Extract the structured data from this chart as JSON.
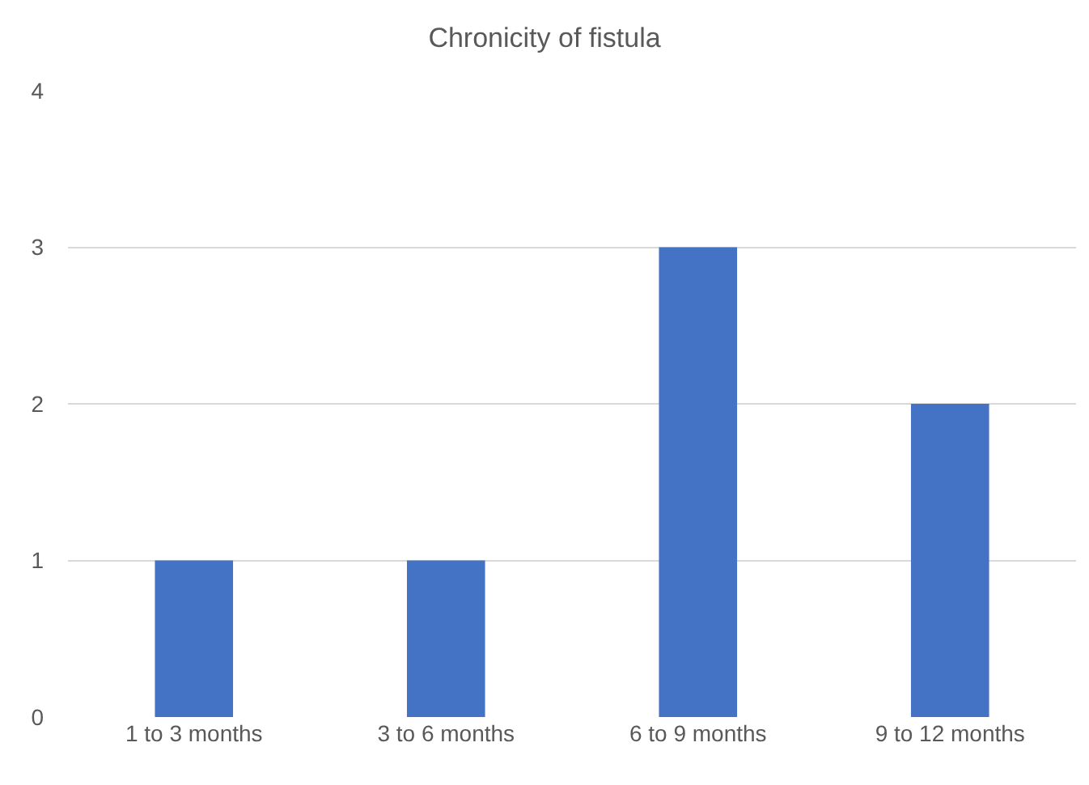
{
  "chart_data": {
    "type": "bar",
    "title": "Chronicity of fistula",
    "categories": [
      "1 to 3 months",
      "3 to 6 months",
      "6 to 9 months",
      "9 to 12 months"
    ],
    "values": [
      1,
      1,
      3,
      2
    ],
    "color": "#4472c4",
    "ylim": [
      0,
      4
    ],
    "yticks": [
      0,
      1,
      2,
      3,
      4
    ],
    "grid": "y"
  }
}
